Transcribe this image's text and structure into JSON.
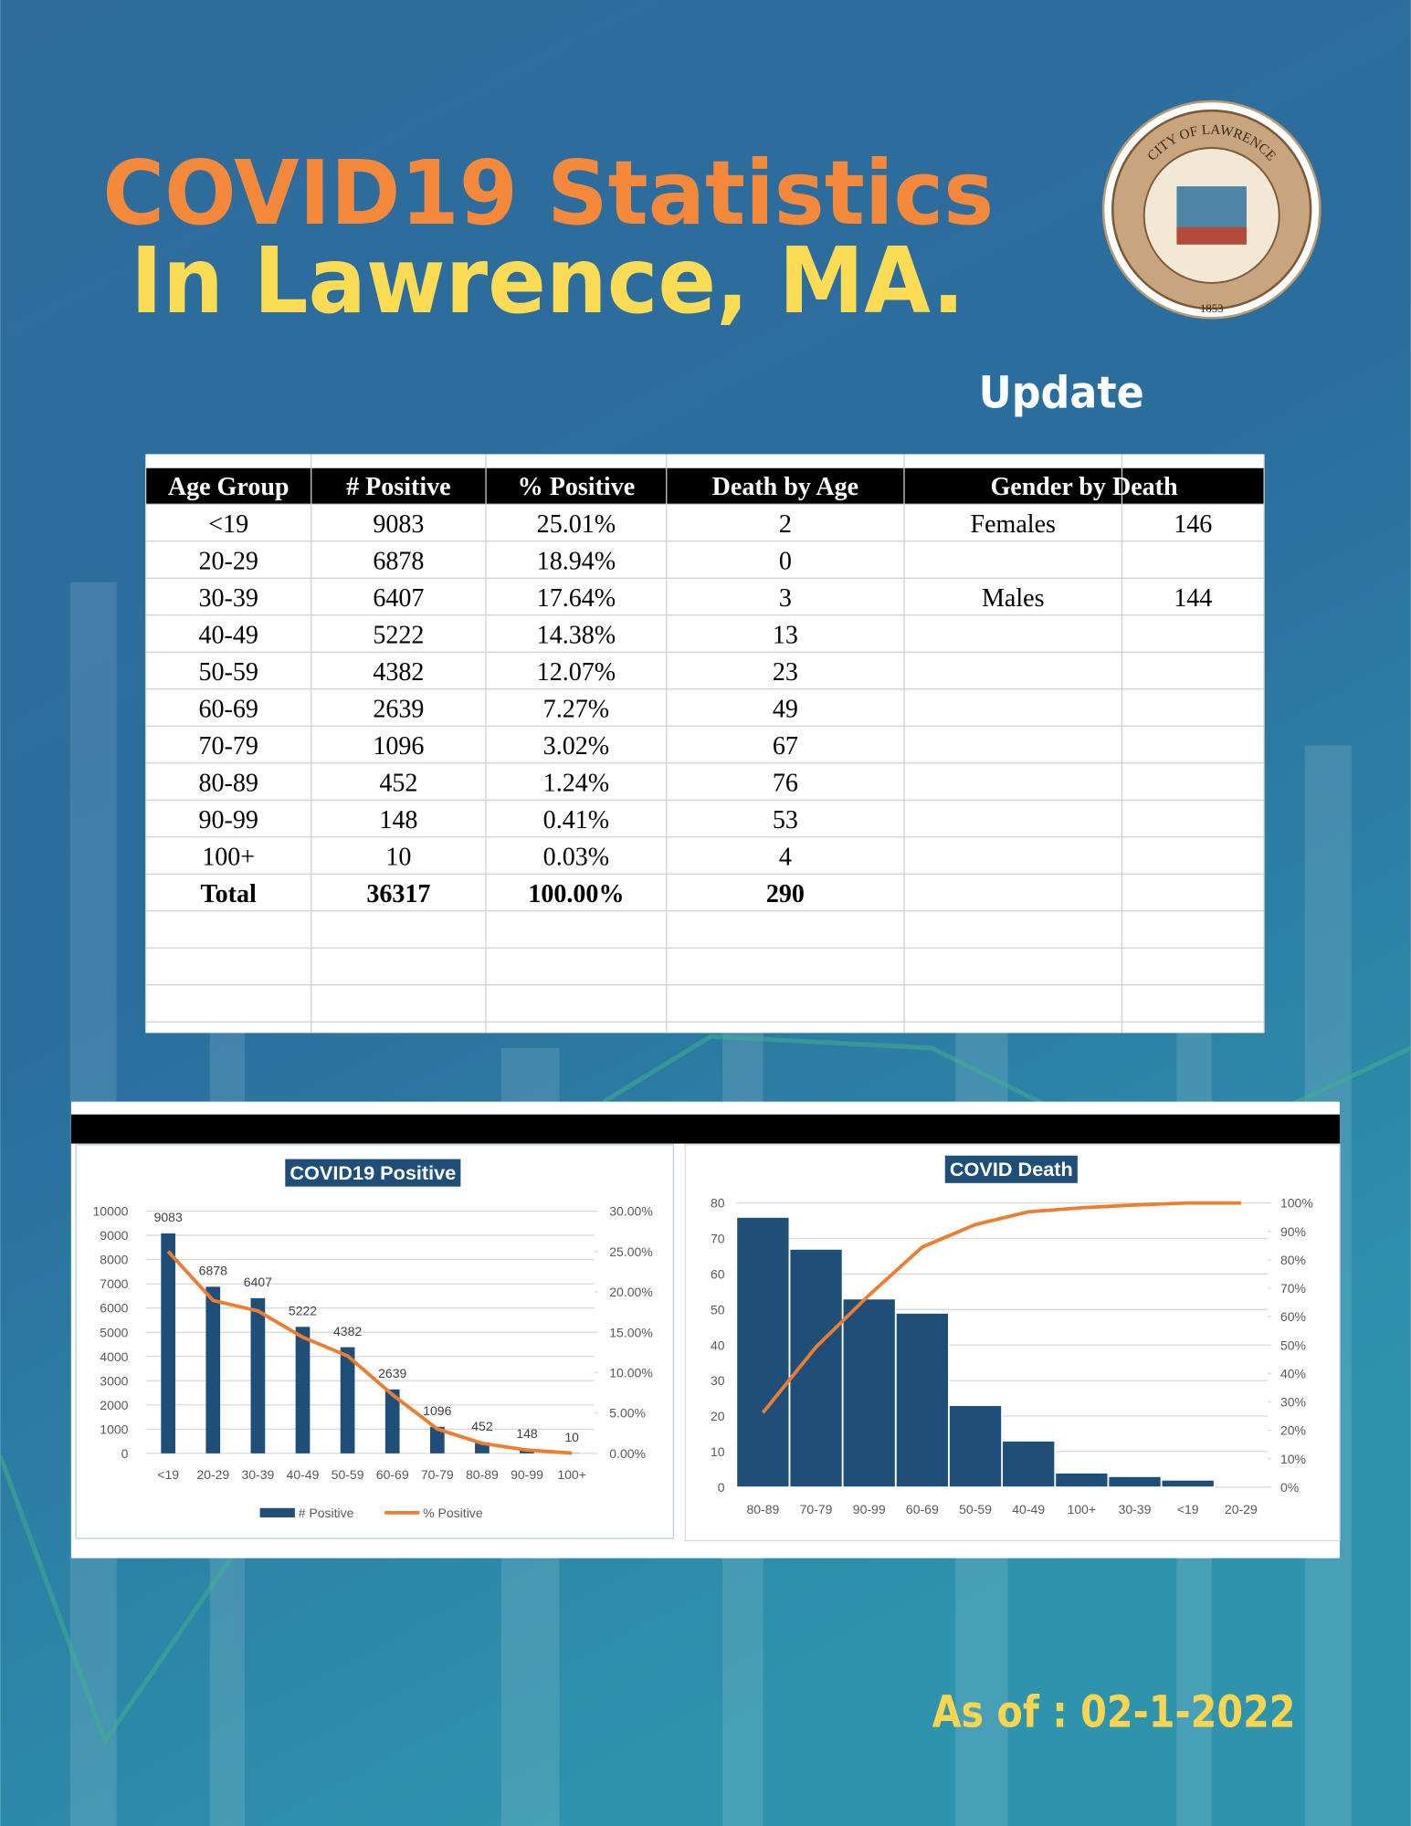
{
  "header": {
    "title": "COVID19 Statistics",
    "subtitle": "In Lawrence, MA.",
    "update": "Update",
    "date": "As of : 02-1-2022"
  },
  "seal": {
    "name": "CITY OF LAWRENCE",
    "year": "1853"
  },
  "table": {
    "columns": [
      "Age Group",
      "# Positive",
      "% Positive",
      "Death by Age",
      "Gender by Death"
    ],
    "rows": [
      [
        "<19",
        9083,
        "25.01%",
        2
      ],
      [
        "20-29",
        6878,
        "18.94%",
        0
      ],
      [
        "30-39",
        6407,
        "17.64%",
        3
      ],
      [
        "40-49",
        5222,
        "14.38%",
        13
      ],
      [
        "50-59",
        4382,
        "12.07%",
        23
      ],
      [
        "60-69",
        2639,
        "7.27%",
        49
      ],
      [
        "70-79",
        1096,
        "3.02%",
        67
      ],
      [
        "80-89",
        452,
        "1.24%",
        76
      ],
      [
        "90-99",
        148,
        "0.41%",
        53
      ],
      [
        "100+",
        10,
        "0.03%",
        4
      ],
      [
        "Total",
        36317,
        "100.00%",
        290
      ]
    ],
    "gender": [
      [
        "Females",
        146
      ],
      [
        "Males",
        144
      ]
    ]
  },
  "chart_data": [
    {
      "type": "combo",
      "title": "COVID19 Positive",
      "categories": [
        "<19",
        "20-29",
        "30-39",
        "40-49",
        "50-59",
        "60-69",
        "70-79",
        "80-89",
        "90-99",
        "100+"
      ],
      "series": [
        {
          "name": "# Positive",
          "color": "#1f4e79",
          "kind": "bar",
          "axis": "y",
          "values": [
            9083,
            6878,
            6407,
            5222,
            4382,
            2639,
            1096,
            452,
            148,
            10
          ]
        },
        {
          "name": "% Positive",
          "color": "#ed7d31",
          "kind": "line",
          "axis": "y2",
          "values": [
            25.01,
            18.94,
            17.64,
            14.38,
            12.07,
            7.27,
            3.02,
            1.24,
            0.41,
            0.03
          ]
        }
      ],
      "ylim": [
        0,
        10000
      ],
      "yticks": [
        0,
        1000,
        2000,
        3000,
        4000,
        5000,
        6000,
        7000,
        8000,
        9000,
        10000
      ],
      "y2lim": [
        0,
        30
      ],
      "y2ticks": [
        {
          "value": 0,
          "label": "0.00%"
        },
        {
          "value": 5,
          "label": "5.00%"
        },
        {
          "value": 10,
          "label": "10.00%"
        },
        {
          "value": 15,
          "label": "15.00%"
        },
        {
          "value": 20,
          "label": "20.00%"
        },
        {
          "value": 25,
          "label": "25.00%"
        },
        {
          "value": 30,
          "label": "30.00%"
        }
      ],
      "grid": true,
      "legend": "bottom",
      "data_labels": true
    },
    {
      "type": "pareto",
      "title": "COVID Death",
      "categories": [
        "80-89",
        "70-79",
        "90-99",
        "60-69",
        "50-59",
        "40-49",
        "100+",
        "30-39",
        "<19",
        "20-29"
      ],
      "series": [
        {
          "color": "#1f4e79",
          "kind": "bar",
          "axis": "y",
          "values": [
            76,
            67,
            53,
            49,
            23,
            13,
            4,
            3,
            2,
            0
          ]
        },
        {
          "color": "#ed7d31",
          "kind": "line",
          "axis": "y2",
          "values": [
            26.2,
            49.3,
            67.6,
            84.5,
            92.4,
            96.9,
            98.3,
            99.3,
            100,
            100
          ]
        }
      ],
      "ylim": [
        0,
        80
      ],
      "yticks": [
        0,
        10,
        20,
        30,
        40,
        50,
        60,
        70,
        80
      ],
      "y2lim": [
        0,
        100
      ],
      "y2ticks": [
        {
          "value": 0,
          "label": "0%"
        },
        {
          "value": 10,
          "label": "10%"
        },
        {
          "value": 20,
          "label": "20%"
        },
        {
          "value": 30,
          "label": "30%"
        },
        {
          "value": 40,
          "label": "40%"
        },
        {
          "value": 50,
          "label": "50%"
        },
        {
          "value": 60,
          "label": "60%"
        },
        {
          "value": 70,
          "label": "70%"
        },
        {
          "value": 80,
          "label": "80%"
        },
        {
          "value": 90,
          "label": "90%"
        },
        {
          "value": 100,
          "label": "100%"
        }
      ],
      "grid": true
    }
  ]
}
